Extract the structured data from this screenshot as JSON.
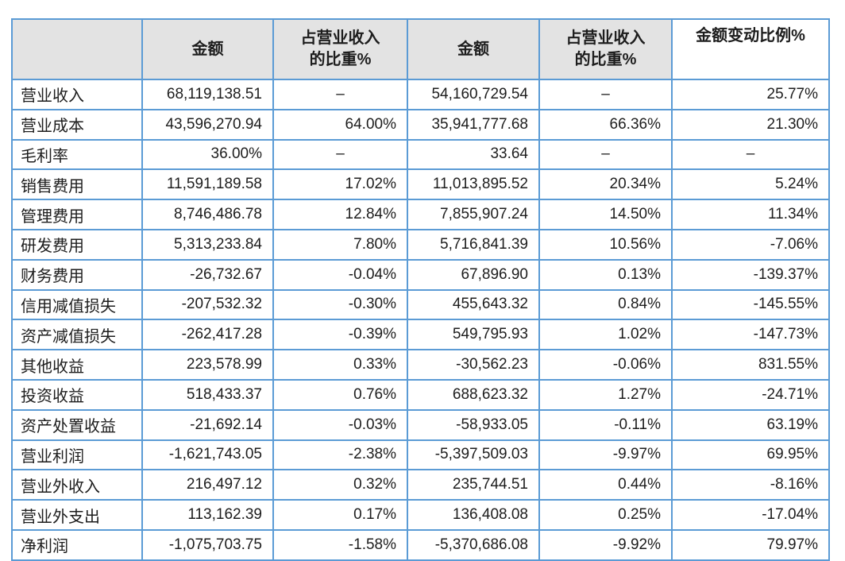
{
  "style": {
    "border_color": "#5b9bd5",
    "header_background": "#e3e3e3",
    "text_color": "#1d1d1d",
    "page_background": "#ffffff"
  },
  "table": {
    "column_headers": [
      {
        "line1": "",
        "line2": ""
      },
      {
        "line1": "金额",
        "line2": ""
      },
      {
        "line1": "占营业收入",
        "line2": "的比重%"
      },
      {
        "line1": "金额",
        "line2": ""
      },
      {
        "line1": "占营业收入",
        "line2": "的比重%"
      },
      {
        "line1": "金额变动比例%",
        "line2": ""
      }
    ],
    "rows": [
      {
        "label": "营业收入",
        "values": [
          "68,119,138.51",
          "–",
          "54,160,729.54",
          "–",
          "25.77%"
        ]
      },
      {
        "label": "营业成本",
        "values": [
          "43,596,270.94",
          "64.00%",
          "35,941,777.68",
          "66.36%",
          "21.30%"
        ]
      },
      {
        "label": "毛利率",
        "values": [
          "36.00%",
          "–",
          "33.64",
          "–",
          "–"
        ]
      },
      {
        "label": "销售费用",
        "values": [
          "11,591,189.58",
          "17.02%",
          "11,013,895.52",
          "20.34%",
          "5.24%"
        ]
      },
      {
        "label": "管理费用",
        "values": [
          "8,746,486.78",
          "12.84%",
          "7,855,907.24",
          "14.50%",
          "11.34%"
        ]
      },
      {
        "label": "研发费用",
        "values": [
          "5,313,233.84",
          "7.80%",
          "5,716,841.39",
          "10.56%",
          "-7.06%"
        ]
      },
      {
        "label": "财务费用",
        "values": [
          "-26,732.67",
          "-0.04%",
          "67,896.90",
          "0.13%",
          "-139.37%"
        ]
      },
      {
        "label": "信用减值损失",
        "values": [
          "-207,532.32",
          "-0.30%",
          "455,643.32",
          "0.84%",
          "-145.55%"
        ]
      },
      {
        "label": "资产减值损失",
        "values": [
          "-262,417.28",
          "-0.39%",
          "549,795.93",
          "1.02%",
          "-147.73%"
        ]
      },
      {
        "label": "其他收益",
        "values": [
          "223,578.99",
          "0.33%",
          "-30,562.23",
          "-0.06%",
          "831.55%"
        ]
      },
      {
        "label": "投资收益",
        "values": [
          "518,433.37",
          "0.76%",
          "688,623.32",
          "1.27%",
          "-24.71%"
        ]
      },
      {
        "label": "资产处置收益",
        "values": [
          "-21,692.14",
          "-0.03%",
          "-58,933.05",
          "-0.11%",
          "63.19%"
        ]
      },
      {
        "label": "营业利润",
        "values": [
          "-1,621,743.05",
          "-2.38%",
          "-5,397,509.03",
          "-9.97%",
          "69.95%"
        ]
      },
      {
        "label": "营业外收入",
        "values": [
          "216,497.12",
          "0.32%",
          "235,744.51",
          "0.44%",
          "-8.16%"
        ]
      },
      {
        "label": "营业外支出",
        "values": [
          "113,162.39",
          "0.17%",
          "136,408.08",
          "0.25%",
          "-17.04%"
        ]
      },
      {
        "label": "净利润",
        "values": [
          "-1,075,703.75",
          "-1.58%",
          "-5,370,686.08",
          "-9.92%",
          "79.97%"
        ]
      }
    ]
  }
}
